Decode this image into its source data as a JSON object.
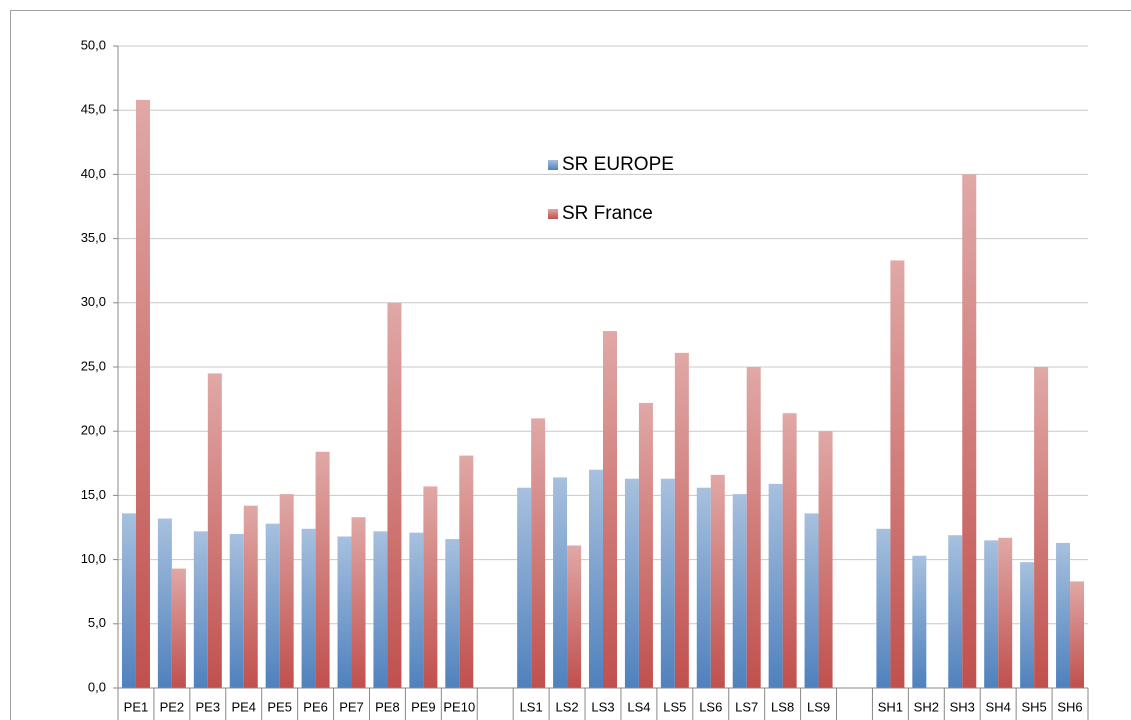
{
  "chart_data": {
    "type": "bar",
    "categories": [
      "PE1",
      "PE2",
      "PE3",
      "PE4",
      "PE5",
      "PE6",
      "PE7",
      "PE8",
      "PE9",
      "PE10",
      null,
      "LS1",
      "LS2",
      "LS3",
      "LS4",
      "LS5",
      "LS6",
      "LS7",
      "LS8",
      "LS9",
      null,
      "SH1",
      "SH2",
      "SH3",
      "SH4",
      "SH5",
      "SH6"
    ],
    "series": [
      {
        "name": "SR EUROPE",
        "color": "#4f81bd",
        "values": [
          13.6,
          13.2,
          12.2,
          12.0,
          12.8,
          12.4,
          11.8,
          12.2,
          12.1,
          11.6,
          null,
          15.6,
          16.4,
          17.0,
          16.3,
          16.3,
          15.6,
          15.1,
          15.9,
          13.6,
          null,
          12.4,
          10.3,
          11.9,
          11.5,
          9.8,
          11.3
        ]
      },
      {
        "name": "SR France",
        "color": "#c0504d",
        "values": [
          45.8,
          9.3,
          24.5,
          14.2,
          15.1,
          18.4,
          13.3,
          30.0,
          15.7,
          18.1,
          null,
          21.0,
          11.1,
          27.8,
          22.2,
          26.1,
          16.6,
          25.0,
          21.4,
          20.0,
          null,
          33.3,
          null,
          40.0,
          11.7,
          25.0,
          8.3
        ]
      }
    ],
    "ylim": [
      0,
      50
    ],
    "yticks": [
      {
        "value": 0,
        "label": "0,0"
      },
      {
        "value": 5,
        "label": "5,0"
      },
      {
        "value": 10,
        "label": "10,0"
      },
      {
        "value": 15,
        "label": "15,0"
      },
      {
        "value": 20,
        "label": "20,0"
      },
      {
        "value": 25,
        "label": "25,0"
      },
      {
        "value": 30,
        "label": "30,0"
      },
      {
        "value": 35,
        "label": "35,0"
      },
      {
        "value": 40,
        "label": "40,0"
      },
      {
        "value": 45,
        "label": "45,0"
      },
      {
        "value": 50,
        "label": "50,0"
      }
    ],
    "grid": true,
    "legend": "top"
  }
}
